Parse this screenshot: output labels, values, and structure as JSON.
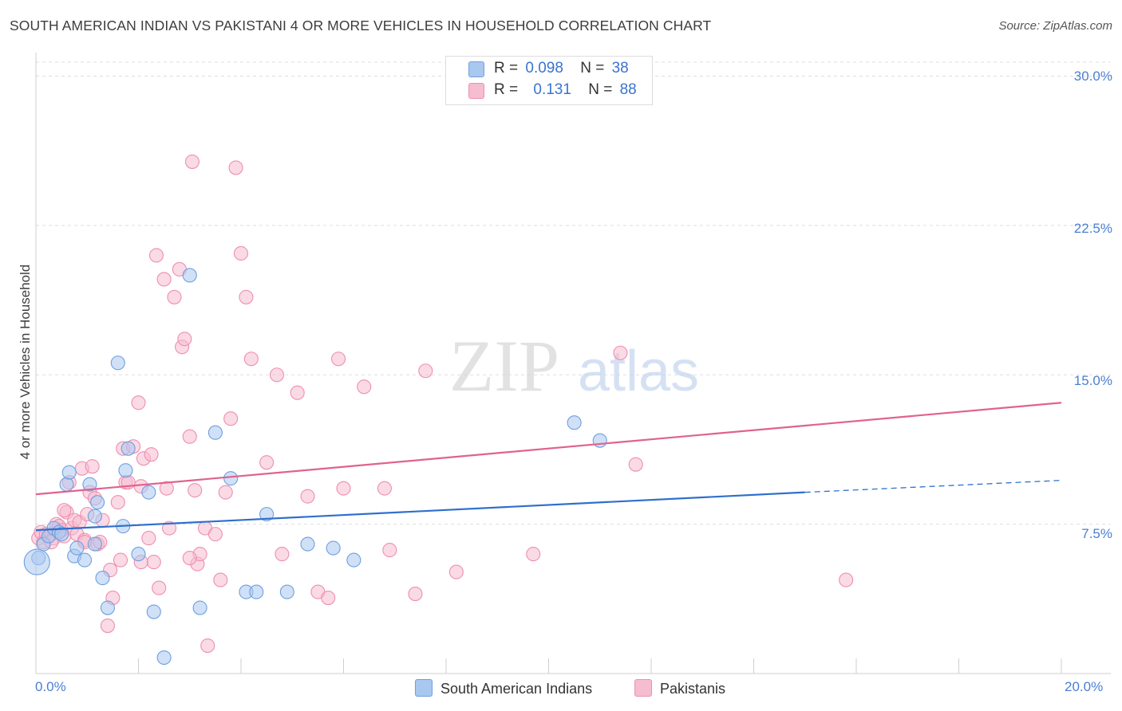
{
  "title": "SOUTH AMERICAN INDIAN VS PAKISTANI 4 OR MORE VEHICLES IN HOUSEHOLD CORRELATION CHART",
  "source": "Source: ZipAtlas.com",
  "watermark": {
    "zip": "ZIP",
    "atlas": "atlas"
  },
  "legend_top": {
    "row1": {
      "r_label": "R =",
      "r_value": "0.098",
      "n_label": "N =",
      "n_value": "38"
    },
    "row2": {
      "r_label": "R =",
      "r_value": "0.131",
      "n_label": "N =",
      "n_value": "88"
    }
  },
  "legend_bottom": {
    "series1": "South American Indians",
    "series2": "Pakistanis"
  },
  "colors": {
    "blue_fill": "#a9c8f0",
    "blue_stroke": "#6f9fe0",
    "blue_line": "#2f6fcc",
    "pink_fill": "#f6bcd0",
    "pink_stroke": "#ee8fb0",
    "pink_line": "#e0628f",
    "grid": "#dddddd",
    "tick_label": "#4a7fd4"
  },
  "chart_data": {
    "type": "scatter",
    "title": "SOUTH AMERICAN INDIAN VS PAKISTANI 4 OR MORE VEHICLES IN HOUSEHOLD CORRELATION CHART",
    "xlabel": "",
    "ylabel": "4 or more Vehicles in Household",
    "xlim": [
      0,
      20
    ],
    "ylim": [
      0,
      30
    ],
    "x_tick_labels": [
      "0.0%",
      "20.0%"
    ],
    "y_tick_labels": [
      "7.5%",
      "15.0%",
      "22.5%",
      "30.0%"
    ],
    "y_ticks": [
      7.5,
      15.0,
      22.5,
      30.0
    ],
    "grid": true,
    "series": [
      {
        "name": "South American Indians",
        "R": 0.098,
        "N": 38,
        "points": [
          [
            0.05,
            5.8
          ],
          [
            0.15,
            6.5
          ],
          [
            0.25,
            6.9
          ],
          [
            0.35,
            7.3
          ],
          [
            0.45,
            7.1
          ],
          [
            0.5,
            7.0
          ],
          [
            0.6,
            9.5
          ],
          [
            0.65,
            10.1
          ],
          [
            0.75,
            5.9
          ],
          [
            0.8,
            6.3
          ],
          [
            0.95,
            5.7
          ],
          [
            1.05,
            9.5
          ],
          [
            1.15,
            6.5
          ],
          [
            1.15,
            7.9
          ],
          [
            1.2,
            8.6
          ],
          [
            1.3,
            4.8
          ],
          [
            1.4,
            3.3
          ],
          [
            1.6,
            15.6
          ],
          [
            1.7,
            7.4
          ],
          [
            1.75,
            10.2
          ],
          [
            1.8,
            11.3
          ],
          [
            2.0,
            6.0
          ],
          [
            2.2,
            9.1
          ],
          [
            2.3,
            3.1
          ],
          [
            2.5,
            0.8
          ],
          [
            3.0,
            20.0
          ],
          [
            3.2,
            3.3
          ],
          [
            3.5,
            12.1
          ],
          [
            3.8,
            9.8
          ],
          [
            4.1,
            4.1
          ],
          [
            4.3,
            4.1
          ],
          [
            4.5,
            8.0
          ],
          [
            4.9,
            4.1
          ],
          [
            5.3,
            6.5
          ],
          [
            5.8,
            6.3
          ],
          [
            6.2,
            5.7
          ],
          [
            10.5,
            12.6
          ],
          [
            11.0,
            11.7
          ]
        ],
        "trend": {
          "x": [
            0,
            15
          ],
          "y": [
            7.2,
            9.1
          ]
        },
        "trend_dashed": {
          "x": [
            15,
            20
          ],
          "y": [
            9.1,
            9.7
          ]
        }
      },
      {
        "name": "Pakistanis",
        "R": 0.131,
        "N": 88,
        "points": [
          [
            0.05,
            6.8
          ],
          [
            0.1,
            7.1
          ],
          [
            0.15,
            6.6
          ],
          [
            0.2,
            7.0
          ],
          [
            0.3,
            7.0
          ],
          [
            0.35,
            6.8
          ],
          [
            0.4,
            7.5
          ],
          [
            0.45,
            7.4
          ],
          [
            0.5,
            7.2
          ],
          [
            0.55,
            6.9
          ],
          [
            0.6,
            8.1
          ],
          [
            0.65,
            9.6
          ],
          [
            0.7,
            7.3
          ],
          [
            0.75,
            7.7
          ],
          [
            0.8,
            7.0
          ],
          [
            0.85,
            7.6
          ],
          [
            0.9,
            10.3
          ],
          [
            0.95,
            6.7
          ],
          [
            1.0,
            8.0
          ],
          [
            1.05,
            9.1
          ],
          [
            1.1,
            10.4
          ],
          [
            1.15,
            8.8
          ],
          [
            1.2,
            6.5
          ],
          [
            1.3,
            7.7
          ],
          [
            1.4,
            2.4
          ],
          [
            1.45,
            5.2
          ],
          [
            1.5,
            3.8
          ],
          [
            1.6,
            8.6
          ],
          [
            1.65,
            5.7
          ],
          [
            1.7,
            11.3
          ],
          [
            1.75,
            9.6
          ],
          [
            1.8,
            9.6
          ],
          [
            1.9,
            11.4
          ],
          [
            2.0,
            13.6
          ],
          [
            2.05,
            9.4
          ],
          [
            2.1,
            10.8
          ],
          [
            2.2,
            6.8
          ],
          [
            2.3,
            5.6
          ],
          [
            2.35,
            21.0
          ],
          [
            2.4,
            4.3
          ],
          [
            2.5,
            19.8
          ],
          [
            2.6,
            7.3
          ],
          [
            2.7,
            18.9
          ],
          [
            2.8,
            20.3
          ],
          [
            2.85,
            16.4
          ],
          [
            2.9,
            16.8
          ],
          [
            3.0,
            11.9
          ],
          [
            3.05,
            25.7
          ],
          [
            3.1,
            9.2
          ],
          [
            3.15,
            5.5
          ],
          [
            3.2,
            6.0
          ],
          [
            3.3,
            7.3
          ],
          [
            3.35,
            1.4
          ],
          [
            3.5,
            7.0
          ],
          [
            3.6,
            4.7
          ],
          [
            3.7,
            9.1
          ],
          [
            3.8,
            12.8
          ],
          [
            3.9,
            25.4
          ],
          [
            4.0,
            21.1
          ],
          [
            4.1,
            18.9
          ],
          [
            4.2,
            15.8
          ],
          [
            4.5,
            10.6
          ],
          [
            4.7,
            15.0
          ],
          [
            4.8,
            6.0
          ],
          [
            5.1,
            14.1
          ],
          [
            5.3,
            8.9
          ],
          [
            5.5,
            4.1
          ],
          [
            5.7,
            3.8
          ],
          [
            5.9,
            15.8
          ],
          [
            6.0,
            9.3
          ],
          [
            6.4,
            14.4
          ],
          [
            6.8,
            9.3
          ],
          [
            6.9,
            6.2
          ],
          [
            7.4,
            4.0
          ],
          [
            7.6,
            15.2
          ],
          [
            8.2,
            5.1
          ],
          [
            9.7,
            6.0
          ],
          [
            11.4,
            16.1
          ],
          [
            11.7,
            10.5
          ],
          [
            15.8,
            4.7
          ],
          [
            0.3,
            6.6
          ],
          [
            0.55,
            8.2
          ],
          [
            0.95,
            6.6
          ],
          [
            1.25,
            6.6
          ],
          [
            2.25,
            11.0
          ],
          [
            2.55,
            9.3
          ],
          [
            3.0,
            5.8
          ],
          [
            2.05,
            5.6
          ]
        ],
        "trend": {
          "x": [
            0,
            20
          ],
          "y": [
            9.0,
            13.6
          ]
        }
      }
    ]
  }
}
